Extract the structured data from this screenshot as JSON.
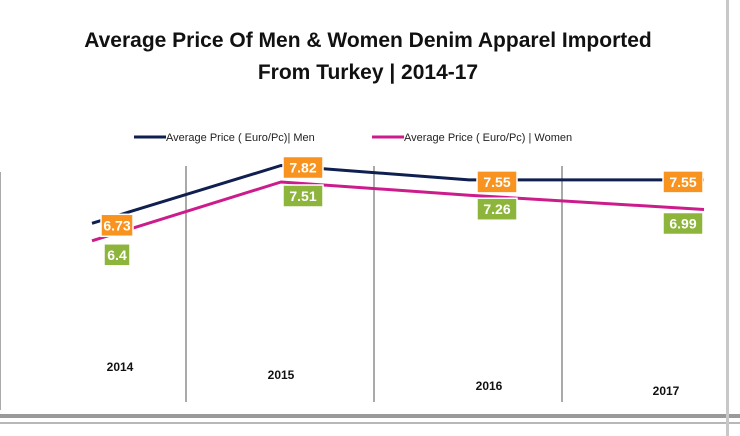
{
  "chart_data": {
    "type": "line",
    "title": [
      "Average Price Of  Men & Women Denim Apparel Imported",
      "From Turkey | 2014-17"
    ],
    "categories": [
      "2014",
      "2015",
      "2016",
      "2017"
    ],
    "series": [
      {
        "name": "Average Price ( Euro/Pc)| Men",
        "values": [
          6.73,
          7.82,
          7.55,
          7.55
        ],
        "labels": [
          "6.73",
          "7.82",
          "7.55",
          "7.55"
        ],
        "color": "#0f1f4f",
        "label_bg": "#f7931e"
      },
      {
        "name": "Average Price ( Euro/Pc) | Women",
        "values": [
          6.4,
          7.51,
          7.26,
          6.99
        ],
        "labels": [
          "6.4",
          "7.51",
          "7.26",
          "6.99"
        ],
        "color": "#cc1c8c",
        "label_bg": "#8db53c"
      }
    ],
    "legend": "top",
    "grid": "vertical category separators",
    "xlabel": "",
    "ylabel": ""
  }
}
